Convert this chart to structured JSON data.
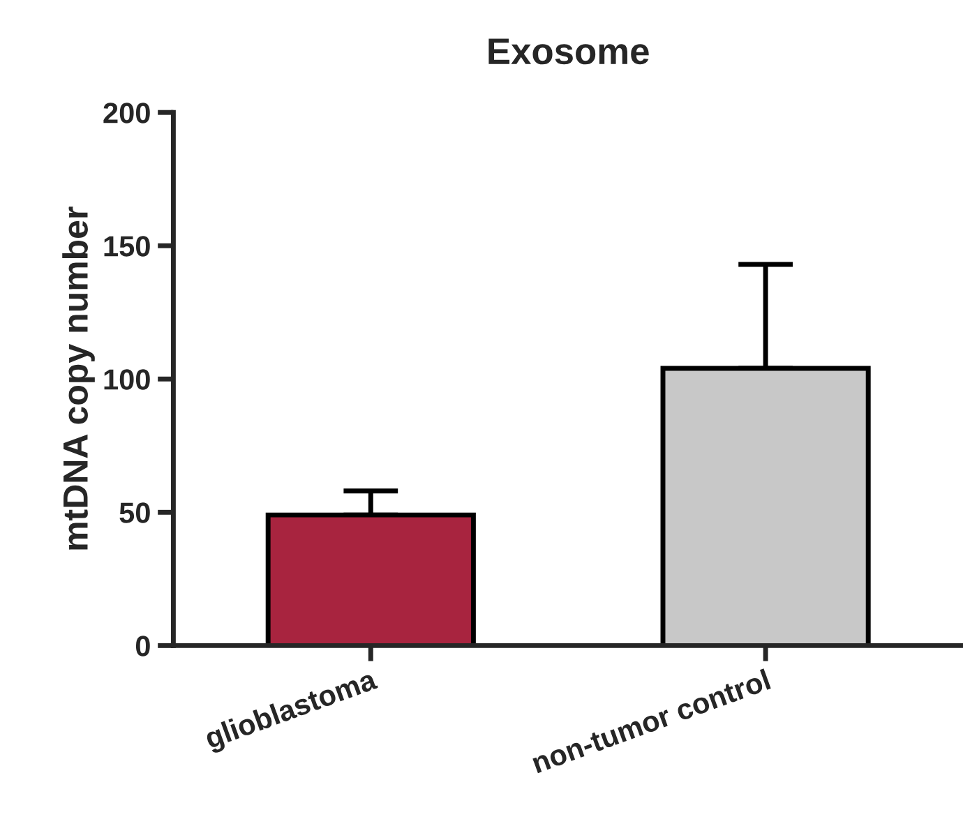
{
  "chart_data": {
    "type": "bar",
    "title": "Exosome",
    "ylabel": "mtDNA copy number",
    "categories": [
      "glioblastoma",
      "non-tumor control"
    ],
    "values": [
      49,
      104
    ],
    "colors": [
      "#a8243f",
      "#c8c8c8"
    ],
    "errors": [
      [
        49,
        58
      ],
      [
        104,
        143
      ]
    ],
    "ylim": [
      0,
      200
    ],
    "yticks": [
      0,
      50,
      100,
      150,
      200
    ],
    "grid": false
  }
}
